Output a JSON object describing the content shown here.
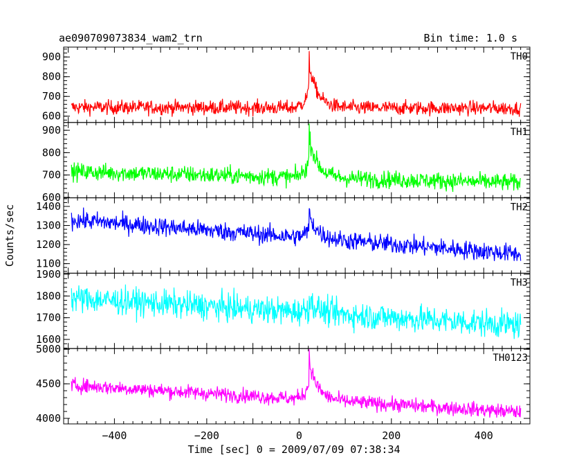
{
  "header": {
    "title": "ae090709073834_wam2_trn",
    "bin_time": "Bin time: 1.0 s"
  },
  "chart_data": {
    "type": "line",
    "xlabel": "Time [sec] 0 = 2009/07/09 07:38:34",
    "ylabel": "Counts/sec",
    "xlim": [
      -510,
      500
    ],
    "x_ticks": [
      -400,
      -200,
      0,
      200,
      400
    ],
    "x_range": [
      -493,
      480
    ],
    "bin_time_s": 1.0,
    "burst_peak_time": 22,
    "panels": [
      {
        "name": "TH0",
        "color": "#ff0000",
        "ylim": [
          568,
          950
        ],
        "y_ticks": [
          600,
          700,
          800,
          900
        ],
        "baseline_start": 645,
        "baseline_end": 640,
        "noise": 26,
        "peak": 930
      },
      {
        "name": "TH1",
        "color": "#00ff00",
        "ylim": [
          598,
          935
        ],
        "y_ticks": [
          600,
          700,
          800,
          900
        ],
        "baseline_start": 715,
        "baseline_end": 665,
        "noise": 28,
        "peak": 930
      },
      {
        "name": "TH2",
        "color": "#0000ff",
        "ylim": [
          1050,
          1445
        ],
        "y_ticks": [
          1100,
          1200,
          1300,
          1400
        ],
        "baseline_start": 1330,
        "baseline_end": 1150,
        "noise": 35,
        "peak": 1390
      },
      {
        "name": "TH3",
        "color": "#00ffff",
        "ylim": [
          1558,
          1905
        ],
        "y_ticks": [
          1600,
          1700,
          1800,
          1900
        ],
        "baseline_start": 1790,
        "baseline_end": 1665,
        "noise": 45,
        "peak": 1800
      },
      {
        "name": "TH0123",
        "color": "#ff00ff",
        "ylim": [
          3920,
          5010
        ],
        "y_ticks": [
          4000,
          4500,
          5000
        ],
        "baseline_start": 4480,
        "baseline_end": 4090,
        "noise": 75,
        "peak": 5000
      }
    ]
  }
}
